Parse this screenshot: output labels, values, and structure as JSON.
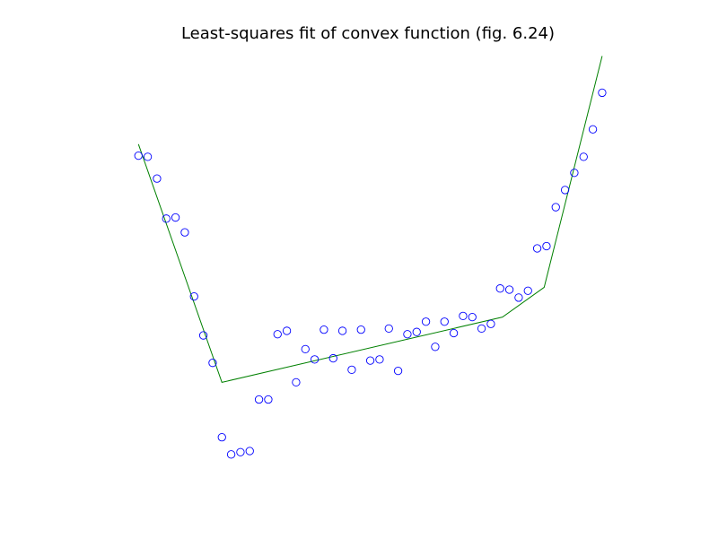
{
  "chart_data": {
    "type": "scatter",
    "title": "Least-squares fit of convex function (fig. 6.24)",
    "xlabel": "",
    "ylabel": "",
    "grid": false,
    "axes_visible": false,
    "series": [
      {
        "kind": "points",
        "marker": "open-circle",
        "color": "#0000ff",
        "points": [
          [
            -0.99,
            2.14
          ],
          [
            -0.95,
            2.13
          ],
          [
            -0.91,
            1.94
          ],
          [
            -0.87,
            1.59
          ],
          [
            -0.83,
            1.6
          ],
          [
            -0.79,
            1.47
          ],
          [
            -0.75,
            0.91
          ],
          [
            -0.71,
            0.57
          ],
          [
            -0.67,
            0.33
          ],
          [
            -0.63,
            -0.32
          ],
          [
            -0.59,
            -0.47
          ],
          [
            -0.55,
            -0.45
          ],
          [
            -0.51,
            -0.44
          ],
          [
            -0.47,
            0.01
          ],
          [
            -0.43,
            0.01
          ],
          [
            -0.39,
            0.58
          ],
          [
            -0.35,
            0.61
          ],
          [
            -0.31,
            0.16
          ],
          [
            -0.27,
            0.45
          ],
          [
            -0.23,
            0.36
          ],
          [
            -0.19,
            0.62
          ],
          [
            -0.15,
            0.37
          ],
          [
            -0.11,
            0.61
          ],
          [
            -0.07,
            0.27
          ],
          [
            -0.03,
            0.62
          ],
          [
            0.01,
            0.35
          ],
          [
            0.05,
            0.36
          ],
          [
            0.09,
            0.63
          ],
          [
            0.13,
            0.26
          ],
          [
            0.17,
            0.58
          ],
          [
            0.21,
            0.6
          ],
          [
            0.25,
            0.69
          ],
          [
            0.29,
            0.47
          ],
          [
            0.33,
            0.69
          ],
          [
            0.37,
            0.59
          ],
          [
            0.41,
            0.74
          ],
          [
            0.45,
            0.73
          ],
          [
            0.49,
            0.63
          ],
          [
            0.53,
            0.67
          ],
          [
            0.57,
            0.98
          ],
          [
            0.61,
            0.97
          ],
          [
            0.65,
            0.9
          ],
          [
            0.69,
            0.96
          ],
          [
            0.73,
            1.33
          ],
          [
            0.77,
            1.35
          ],
          [
            0.81,
            1.69
          ],
          [
            0.85,
            1.84
          ],
          [
            0.89,
            1.99
          ],
          [
            0.93,
            2.13
          ],
          [
            0.97,
            2.37
          ],
          [
            1.01,
            2.69
          ]
        ]
      },
      {
        "kind": "line",
        "color": "#008000",
        "points": [
          [
            -0.99,
            2.24
          ],
          [
            -0.63,
            0.16
          ],
          [
            0.58,
            0.73
          ],
          [
            0.76,
            0.99
          ],
          [
            1.01,
            3.01
          ]
        ]
      }
    ]
  }
}
